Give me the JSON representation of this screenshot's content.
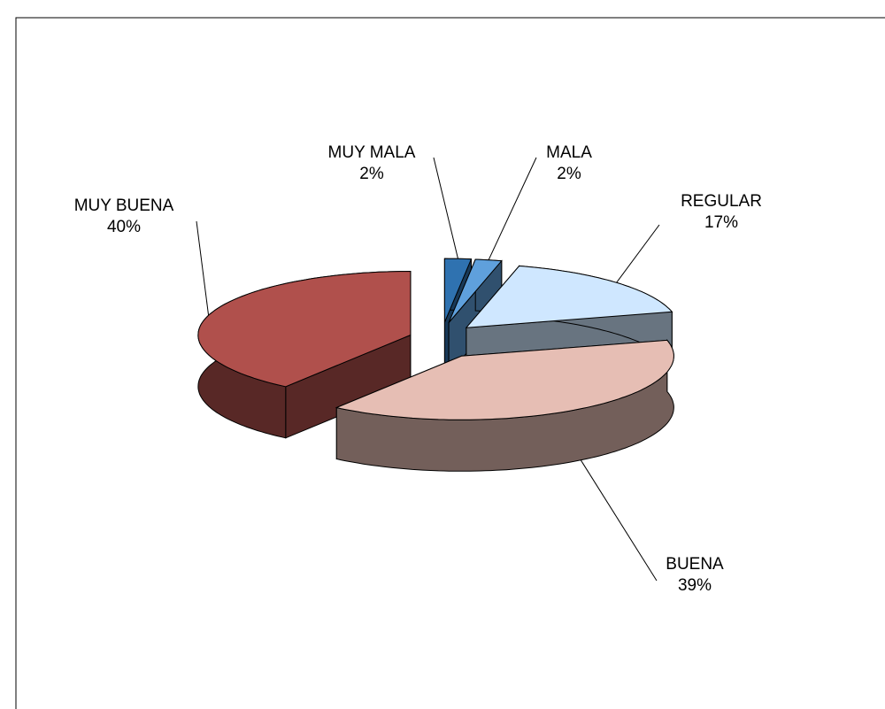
{
  "chart_data": {
    "type": "pie3d",
    "categories": [
      "MUY MALA",
      "MALA",
      "REGULAR",
      "BUENA",
      "MUY BUENA"
    ],
    "values": [
      2,
      2,
      17,
      39,
      40
    ],
    "value_labels": [
      "2%",
      "2%",
      "17%",
      "39%",
      "40%"
    ],
    "colors": [
      "#2f72b0",
      "#5fa0dc",
      "#cfe7ff",
      "#e6beb4",
      "#b0504c"
    ]
  }
}
